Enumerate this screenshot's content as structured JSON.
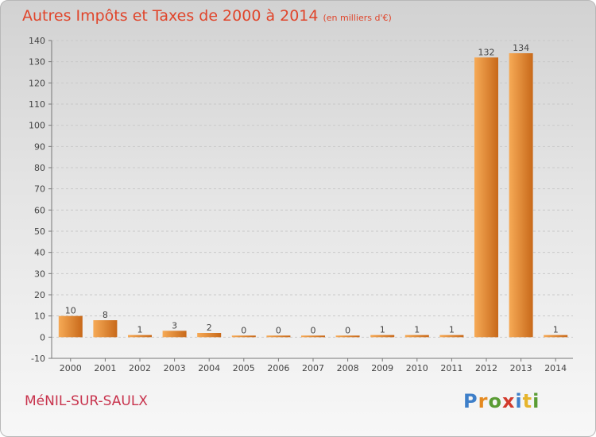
{
  "title": "Autres Impôts et Taxes de 2000 à 2014",
  "subtitle": "(en milliers d'€)",
  "commune": "MéNIL-SUR-SAULX",
  "brand": "Proxiti",
  "chart_data": {
    "type": "bar",
    "title": "Autres Impôts et Taxes de 2000 à 2014",
    "subtitle": "(en milliers d'€)",
    "xlabel": "",
    "ylabel": "",
    "categories": [
      "2000",
      "2001",
      "2002",
      "2003",
      "2004",
      "2005",
      "2006",
      "2007",
      "2008",
      "2009",
      "2010",
      "2011",
      "2012",
      "2013",
      "2014"
    ],
    "values": [
      10,
      8,
      1,
      3,
      2,
      0,
      0,
      0,
      0,
      1,
      1,
      1,
      132,
      134,
      1
    ],
    "data_labels": [
      "10",
      "8",
      "1",
      "3",
      "2",
      "0",
      "0",
      "0",
      "0",
      "1",
      "1",
      "1",
      "132",
      "134",
      "1"
    ],
    "ylim": [
      -10,
      140
    ],
    "yticks": [
      -10,
      0,
      10,
      20,
      30,
      40,
      50,
      60,
      70,
      80,
      90,
      100,
      110,
      120,
      130,
      140
    ],
    "grid": true,
    "legend": "none",
    "bar_color": "#e4892e"
  }
}
